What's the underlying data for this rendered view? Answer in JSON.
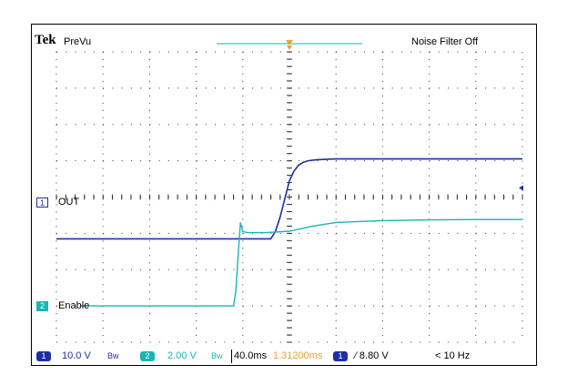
{
  "header": {
    "brand": "Tek",
    "mode": "PreVu",
    "noise_filter": "Noise Filter Off"
  },
  "channels": [
    {
      "number": "1",
      "label": "OUT",
      "color": "#1d2fa6"
    },
    {
      "number": "2",
      "label": "Enable",
      "color": "#1ab5b5"
    }
  ],
  "status_bar": {
    "ch1_number": "1",
    "ch1_scale": "10.0 V",
    "ch1_bw": "Bw",
    "ch2_number": "2",
    "ch2_scale": "2.00 V",
    "ch2_bw": "Bw",
    "timebase": "40.0ms",
    "trigger_position": "1.31200ms",
    "trigger_source": "1",
    "trigger_level": "∕ 8.80 V",
    "trigger_rate": "< 10 Hz"
  },
  "colors": {
    "ch1": "#1d2fa6",
    "ch2": "#1ab5b5",
    "trigger": "#f0a030",
    "grid_dot": "#333333"
  },
  "chart_data": {
    "type": "line",
    "title": "",
    "xlabel": "",
    "ylabel": "",
    "grid": true,
    "xlim": [
      -200,
      200
    ],
    "ylim": [
      -4,
      4
    ],
    "series": [
      {
        "name": "OUT",
        "x": [
          -200,
          -160,
          -120,
          -80,
          -40,
          -16,
          -12,
          -8,
          -4,
          0,
          4,
          8,
          12,
          16,
          24,
          40,
          80,
          120,
          160,
          200
        ],
        "y": [
          -1.15,
          -1.15,
          -1.15,
          -1.15,
          -1.15,
          -1.15,
          -0.95,
          -0.55,
          -0.05,
          0.45,
          0.72,
          0.88,
          0.96,
          1.0,
          1.03,
          1.05,
          1.05,
          1.05,
          1.05,
          1.05
        ]
      },
      {
        "name": "Enable",
        "x": [
          -180,
          -140,
          -100,
          -60,
          -48,
          -46,
          -44,
          -42,
          -40,
          -36,
          -20,
          0,
          20,
          40,
          80,
          120,
          160,
          200
        ],
        "y": [
          -3.0,
          -3.0,
          -3.0,
          -3.0,
          -3.0,
          -2.6,
          -1.6,
          -0.7,
          -0.95,
          -0.98,
          -0.98,
          -0.94,
          -0.8,
          -0.7,
          -0.65,
          -0.63,
          -0.62,
          -0.62
        ]
      }
    ]
  }
}
